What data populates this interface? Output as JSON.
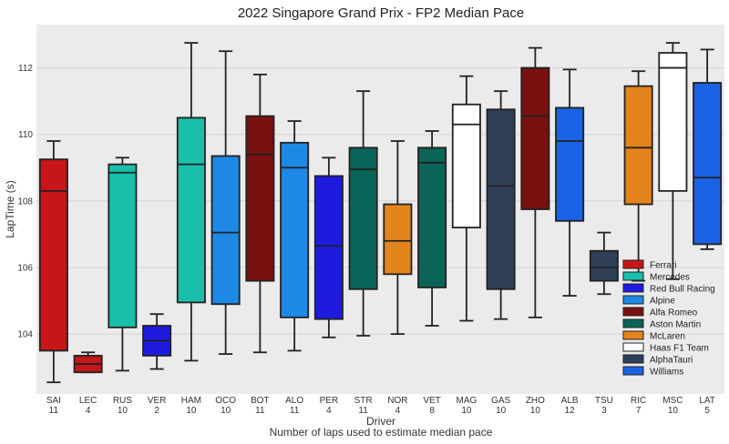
{
  "chart_data": {
    "type": "box",
    "title": "2022 Singapore Grand Prix - FP2 Median Pace",
    "xlabel": "Driver",
    "xlabel_sub": "Number of laps used to estimate median pace",
    "ylabel": "LapTime (s)",
    "ylim": [
      102.2,
      113.3
    ],
    "yticks": [
      104,
      106,
      108,
      110,
      112
    ],
    "grid": true,
    "legend_position": "lower-right",
    "teams": [
      {
        "name": "Ferrari",
        "color": "#C7161A"
      },
      {
        "name": "Mercedes",
        "color": "#19BFA9"
      },
      {
        "name": "Red Bull Racing",
        "color": "#1E1BDE"
      },
      {
        "name": "Alpine",
        "color": "#1E88E5"
      },
      {
        "name": "Alfa Romeo",
        "color": "#7B1010"
      },
      {
        "name": "Aston Martin",
        "color": "#0A6457"
      },
      {
        "name": "McLaren",
        "color": "#E3841C"
      },
      {
        "name": "Haas F1 Team",
        "color": "#FFFFFF"
      },
      {
        "name": "AlphaTauri",
        "color": "#2E3F57"
      },
      {
        "name": "Williams",
        "color": "#1A62E6"
      }
    ],
    "drivers": [
      {
        "name": "SAI",
        "laps": "11",
        "team": 0,
        "whislo": 102.55,
        "q1": 103.5,
        "med": 108.3,
        "q3": 109.25,
        "whishi": 109.8
      },
      {
        "name": "LEC",
        "laps": "4",
        "team": 0,
        "whislo": 102.85,
        "q1": 102.85,
        "med": 103.1,
        "q3": 103.35,
        "whishi": 103.45
      },
      {
        "name": "RUS",
        "laps": "10",
        "team": 1,
        "whislo": 102.9,
        "q1": 104.2,
        "med": 108.85,
        "q3": 109.1,
        "whishi": 109.3
      },
      {
        "name": "VER",
        "laps": "2",
        "team": 2,
        "whislo": 102.95,
        "q1": 103.35,
        "med": 103.8,
        "q3": 104.25,
        "whishi": 104.6
      },
      {
        "name": "HAM",
        "laps": "10",
        "team": 1,
        "whislo": 103.2,
        "q1": 104.95,
        "med": 109.1,
        "q3": 110.5,
        "whishi": 112.75
      },
      {
        "name": "OCO",
        "laps": "10",
        "team": 3,
        "whislo": 103.4,
        "q1": 104.9,
        "med": 107.05,
        "q3": 109.35,
        "whishi": 112.5
      },
      {
        "name": "BOT",
        "laps": "11",
        "team": 4,
        "whislo": 103.45,
        "q1": 105.6,
        "med": 109.4,
        "q3": 110.55,
        "whishi": 111.8
      },
      {
        "name": "ALO",
        "laps": "11",
        "team": 3,
        "whislo": 103.5,
        "q1": 104.5,
        "med": 109.0,
        "q3": 109.75,
        "whishi": 110.4
      },
      {
        "name": "PER",
        "laps": "4",
        "team": 2,
        "whislo": 103.9,
        "q1": 104.45,
        "med": 106.65,
        "q3": 108.75,
        "whishi": 109.3
      },
      {
        "name": "STR",
        "laps": "11",
        "team": 5,
        "whislo": 103.95,
        "q1": 105.35,
        "med": 108.95,
        "q3": 109.6,
        "whishi": 111.3
      },
      {
        "name": "NOR",
        "laps": "4",
        "team": 6,
        "whislo": 104.0,
        "q1": 105.8,
        "med": 106.8,
        "q3": 107.9,
        "whishi": 109.8
      },
      {
        "name": "VET",
        "laps": "8",
        "team": 5,
        "whislo": 104.25,
        "q1": 105.4,
        "med": 109.15,
        "q3": 109.6,
        "whishi": 110.1
      },
      {
        "name": "MAG",
        "laps": "10",
        "team": 7,
        "whislo": 104.4,
        "q1": 107.2,
        "med": 110.3,
        "q3": 110.9,
        "whishi": 111.75
      },
      {
        "name": "GAS",
        "laps": "10",
        "team": 8,
        "whislo": 104.45,
        "q1": 105.35,
        "med": 108.45,
        "q3": 110.75,
        "whishi": 111.3
      },
      {
        "name": "ZHO",
        "laps": "10",
        "team": 4,
        "whislo": 104.5,
        "q1": 107.75,
        "med": 110.55,
        "q3": 112.0,
        "whishi": 112.6
      },
      {
        "name": "ALB",
        "laps": "12",
        "team": 9,
        "whislo": 105.15,
        "q1": 107.4,
        "med": 109.8,
        "q3": 110.8,
        "whishi": 111.95
      },
      {
        "name": "TSU",
        "laps": "3",
        "team": 8,
        "whislo": 105.2,
        "q1": 105.6,
        "med": 106.0,
        "q3": 106.5,
        "whishi": 107.05
      },
      {
        "name": "RIC",
        "laps": "7",
        "team": 6,
        "whislo": 105.6,
        "q1": 107.9,
        "med": 109.6,
        "q3": 111.45,
        "whishi": 111.9
      },
      {
        "name": "MSC",
        "laps": "10",
        "team": 7,
        "whislo": 105.65,
        "q1": 108.3,
        "med": 112.0,
        "q3": 112.45,
        "whishi": 112.75
      },
      {
        "name": "LAT",
        "laps": "5",
        "team": 9,
        "whislo": 106.55,
        "q1": 106.7,
        "med": 108.7,
        "q3": 111.55,
        "whishi": 112.55
      }
    ]
  }
}
